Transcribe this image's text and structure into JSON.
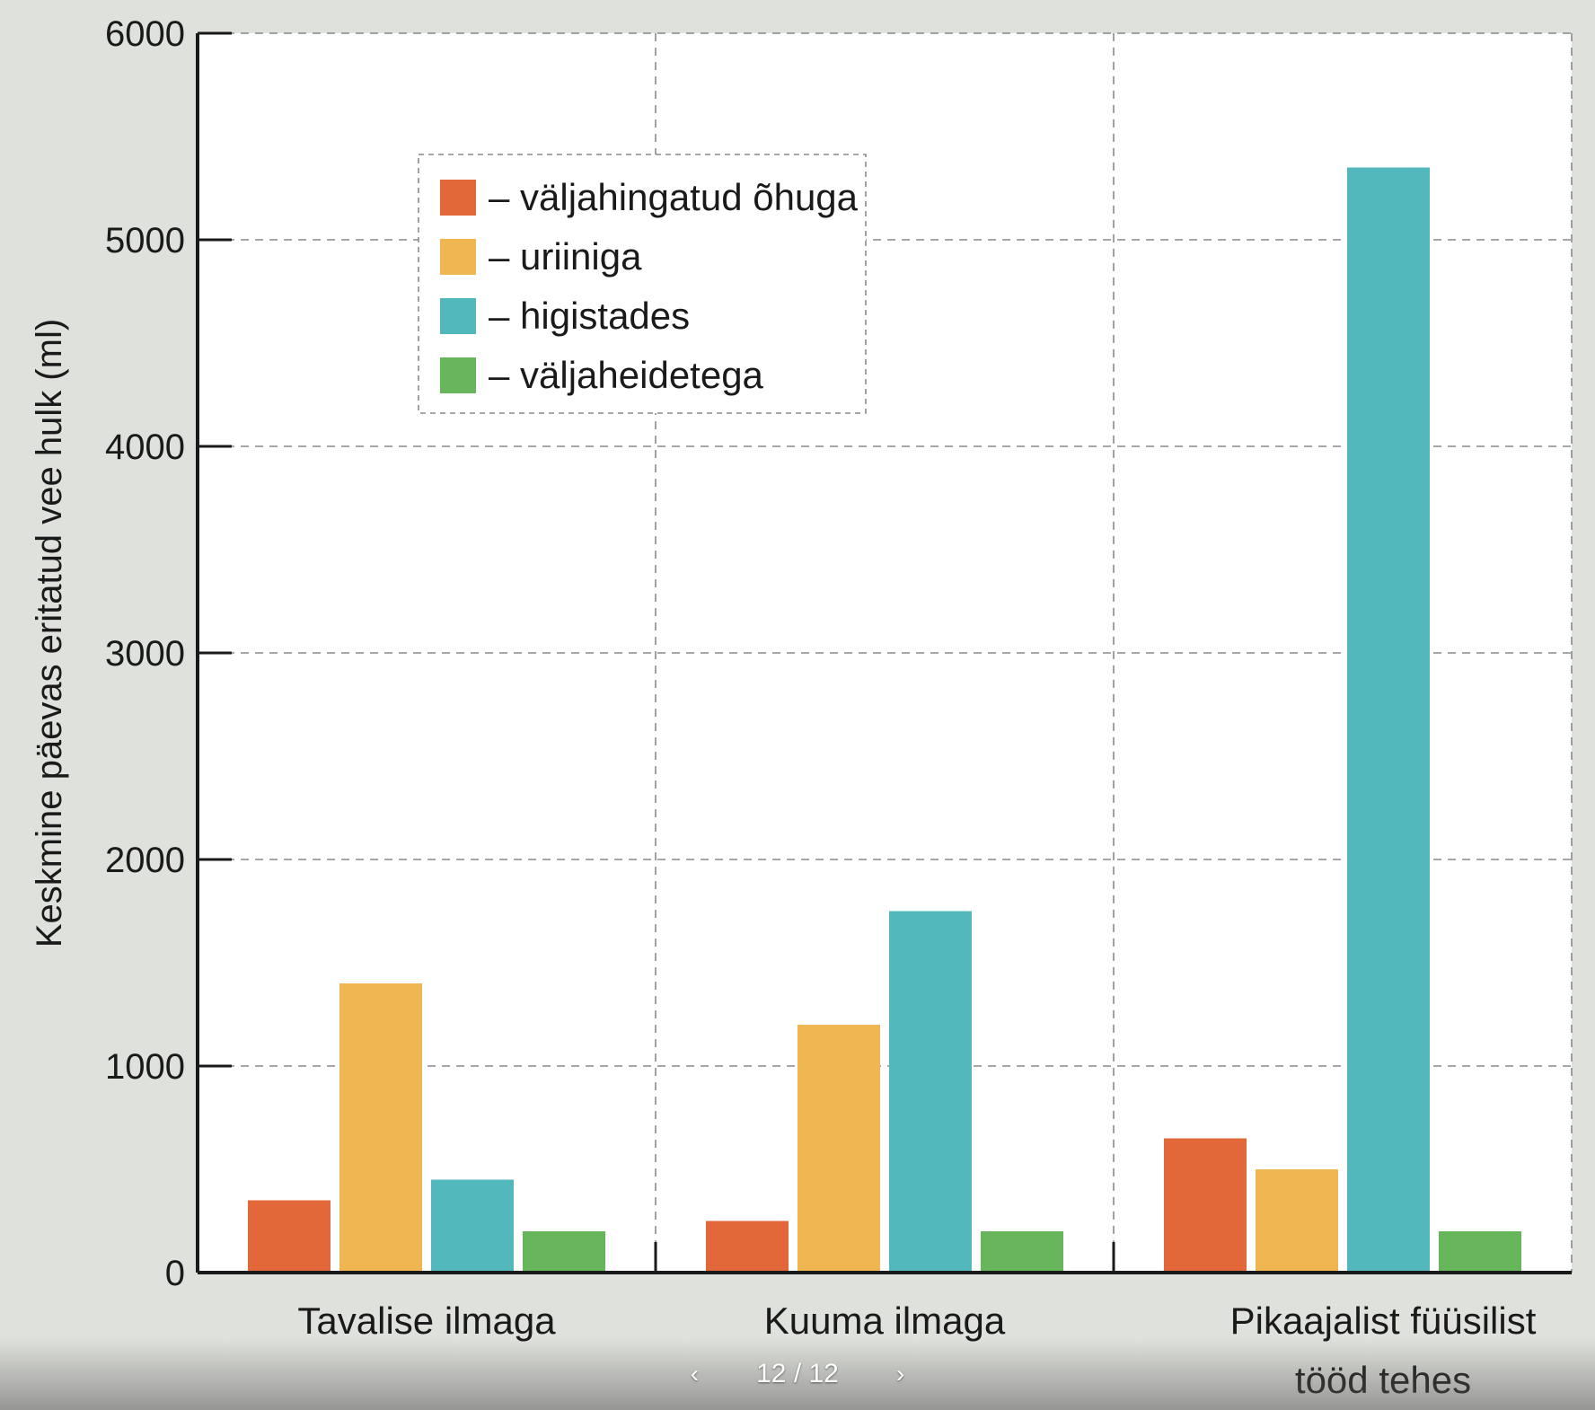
{
  "chart_data": {
    "type": "bar",
    "ylabel": "Keskmine päevas eritatud vee hulk (ml)",
    "xlabel": "",
    "ylim": [
      0,
      6000
    ],
    "yticks": [
      0,
      1000,
      2000,
      3000,
      4000,
      5000,
      6000
    ],
    "grid": true,
    "legend_placement": "upper-left",
    "categories": [
      [
        "Tavalise ilmaga"
      ],
      [
        "Kuuma ilmaga"
      ],
      [
        "Pikaajalist füüsilist",
        "tööd tehes"
      ]
    ],
    "series": [
      {
        "name": "– väljahingatud õhuga",
        "color": "#e2683a",
        "values": [
          350,
          250,
          650
        ]
      },
      {
        "name": "– uriiniga",
        "color": "#f0b652",
        "values": [
          1400,
          1200,
          500
        ]
      },
      {
        "name": "– higistades",
        "color": "#52b8bc",
        "values": [
          450,
          1750,
          5350
        ]
      },
      {
        "name": "– väljaheidetega",
        "color": "#68b65c",
        "values": [
          200,
          200,
          200
        ]
      }
    ]
  },
  "pager": {
    "text": "12 / 12",
    "prev_icon": "‹",
    "next_icon": "›"
  }
}
